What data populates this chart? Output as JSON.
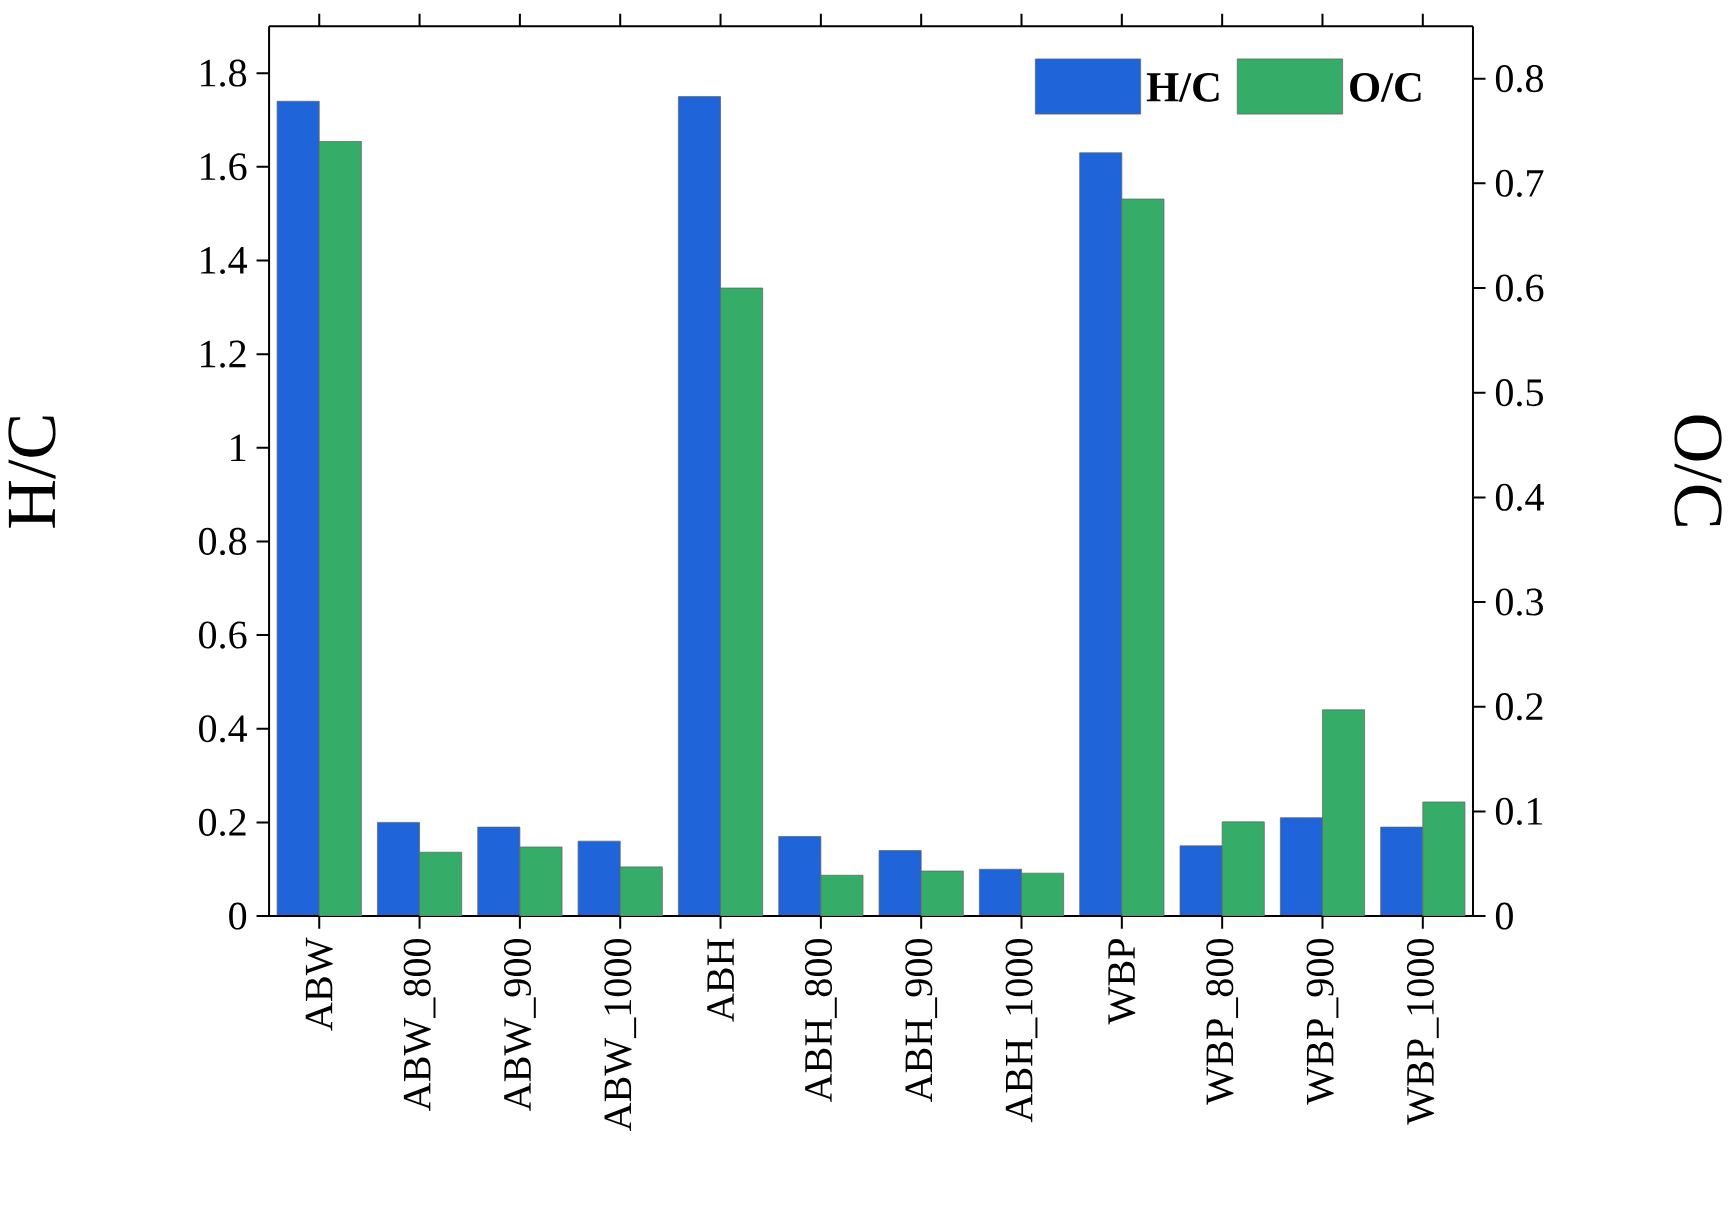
{
  "chart_data": {
    "type": "bar",
    "ylabel": "H/C",
    "y2label": "O/C",
    "categories": [
      "ABW",
      "ABW_800",
      "ABW_900",
      "ABW_1000",
      "ABH",
      "ABH_800",
      "ABH_900",
      "ABH_1000",
      "WBP",
      "WBP_800",
      "WBP_900",
      "WBP_1000"
    ],
    "series": [
      {
        "name": "H/C",
        "color": "#1f64d8",
        "values": [
          1.74,
          0.2,
          0.19,
          0.16,
          1.75,
          0.17,
          0.14,
          0.1,
          1.63,
          0.15,
          0.21,
          0.19
        ]
      },
      {
        "name": "O/C",
        "color": "#35ac68",
        "axis": "y2",
        "values": [
          0.74,
          0.061,
          0.066,
          0.047,
          0.6,
          0.039,
          0.043,
          0.041,
          0.685,
          0.09,
          0.197,
          0.109
        ]
      }
    ],
    "ylim": [
      0,
      1.9
    ],
    "yticks": [
      0,
      0.2,
      0.4,
      0.6,
      0.8,
      1,
      1.2,
      1.4,
      1.6,
      1.8
    ],
    "y2lim": [
      0,
      0.85
    ],
    "y2ticks": [
      0,
      0.1,
      0.2,
      0.3,
      0.4,
      0.5,
      0.6,
      0.7,
      0.8
    ],
    "legend": "top right",
    "grid": false
  }
}
